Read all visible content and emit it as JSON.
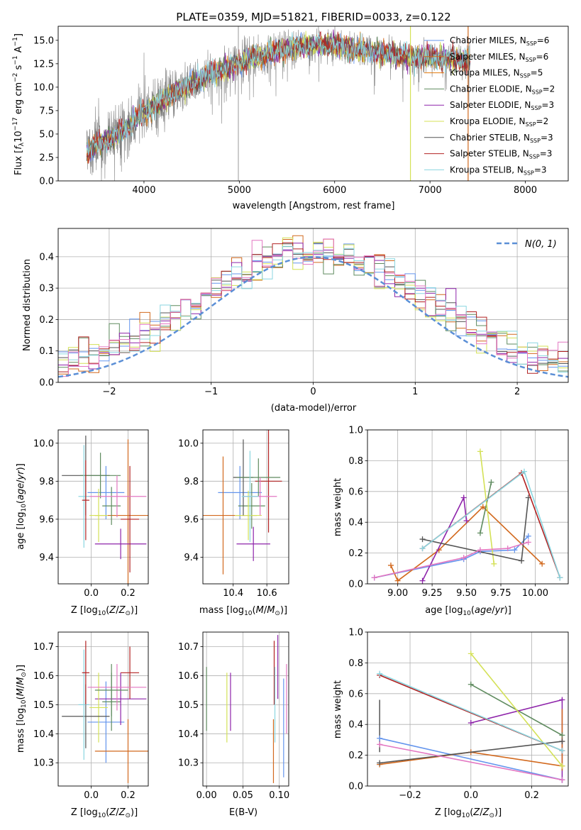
{
  "title": "PLATE=0359, MJD=51821, FIBERID=0033, z=0.122",
  "palette": [
    "#6495ed",
    "#d2691e",
    "#e27a0d",
    "#5f8b5f",
    "#8e24aa",
    "#d4e157",
    "#555555",
    "#b22222",
    "#8ad6e0",
    "#e377c2"
  ],
  "chart_data": [
    {
      "type": "line",
      "panel": "spectrum",
      "title": "PLATE=0359, MJD=51821, FIBERID=0033, z=0.122",
      "xlabel": "wavelength [Angstrom, rest frame]",
      "ylabel": "Flux [f_λ 10^-17 erg cm^-2 s^-1 A^-1]",
      "xlim": [
        3100,
        8450
      ],
      "ylim": [
        0,
        16.5
      ],
      "xticks": [
        4000,
        5000,
        6000,
        7000,
        8000
      ],
      "yticks": [
        0.0,
        2.5,
        5.0,
        7.5,
        10.0,
        12.5,
        15.0
      ],
      "data_range": [
        3400,
        7420
      ],
      "grid": false,
      "legend_position": "upper right",
      "continuum": {
        "x": [
          3400,
          3600,
          3800,
          4000,
          4200,
          4400,
          4600,
          4800,
          5000,
          5200,
          5400,
          5600,
          5800,
          6000,
          6200,
          6400,
          6600,
          6800,
          7000,
          7200,
          7420
        ],
        "y": [
          3.1,
          4.3,
          5.4,
          7.3,
          8.6,
          9.9,
          10.9,
          11.8,
          12.6,
          13.3,
          13.9,
          14.3,
          14.6,
          14.5,
          14.1,
          13.8,
          13.6,
          13.2,
          13.3,
          13.0,
          12.9
        ]
      },
      "vertical_marks": [
        {
          "x": 4990,
          "color": "#aaaaaa"
        },
        {
          "x": 6795,
          "color": "#d4e157"
        },
        {
          "x": 7400,
          "color": "#d2691e"
        }
      ],
      "series": [
        {
          "name": "Chabrier MILES, N_SSP=6"
        },
        {
          "name": "Salpeter MILES, N_SSP=6"
        },
        {
          "name": "Kroupa MILES, N_SSP=5"
        },
        {
          "name": "Chabrier ELODIE, N_SSP=2"
        },
        {
          "name": "Salpeter ELODIE, N_SSP=3"
        },
        {
          "name": "Kroupa ELODIE, N_SSP=2"
        },
        {
          "name": "Chabrier STELIB, N_SSP=3"
        },
        {
          "name": "Salpeter STELIB, N_SSP=3"
        },
        {
          "name": "Kroupa STELIB, N_SSP=3"
        }
      ]
    },
    {
      "type": "line",
      "panel": "residuals",
      "xlabel": "(data-model)/error",
      "ylabel": "Normed distribution",
      "xlim": [
        -2.5,
        2.5
      ],
      "ylim": [
        0,
        0.49
      ],
      "xticks": [
        -2,
        -1,
        0,
        1,
        2
      ],
      "yticks": [
        0.0,
        0.1,
        0.2,
        0.3,
        0.4
      ],
      "grid": true,
      "legend_position": "upper right",
      "series": [
        {
          "name": "N(0,1)",
          "style": "dashed",
          "color": "#5b8fd6"
        }
      ],
      "histograms": [
        {
          "color": "#6495ed"
        },
        {
          "color": "#d2691e"
        },
        {
          "color": "#555555"
        },
        {
          "color": "#5f8b5f"
        },
        {
          "color": "#8e24aa"
        },
        {
          "color": "#d4e157"
        },
        {
          "color": "#b22222"
        },
        {
          "color": "#8ad6e0"
        },
        {
          "color": "#e377c2"
        }
      ],
      "bin_width": 0.1
    },
    {
      "type": "scatter",
      "panel": "age-Z",
      "xlabel": "Z [log10(Z/Z⊙)]",
      "ylabel": "age [log10(age/yr)]",
      "xlim": [
        -0.18,
        0.31
      ],
      "ylim": [
        9.26,
        10.07
      ],
      "xticks": [
        0.0,
        0.2
      ],
      "yticks": [
        9.4,
        9.6,
        9.8,
        10.0
      ],
      "grid": true,
      "points": [
        {
          "x": 0.08,
          "xerr": 0.1,
          "y": 9.74,
          "yerr": 0.14,
          "color": "#6495ed"
        },
        {
          "x": 0.2,
          "xerr": 0.18,
          "y": 9.62,
          "yerr": 0.4,
          "color": "#d2691e"
        },
        {
          "x": 0.11,
          "xerr": 0.05,
          "y": 9.67,
          "yerr": 0.1,
          "color": "#5f8b5f"
        },
        {
          "x": 0.16,
          "xerr": 0.14,
          "y": 9.47,
          "yerr": 0.08,
          "color": "#8e24aa"
        },
        {
          "x": 0.04,
          "xerr": 0.05,
          "y": 9.62,
          "yerr": 0.14,
          "color": "#d4e157"
        },
        {
          "x": -0.03,
          "xerr": 0.13,
          "y": 9.83,
          "yerr": 0.21,
          "color": "#555555"
        },
        {
          "x": 0.21,
          "xerr": 0.05,
          "y": 9.6,
          "yerr": 0.28,
          "color": "#b22222"
        },
        {
          "x": 0.05,
          "xerr": 0.11,
          "y": 9.83,
          "yerr": 0.12,
          "color": "#5f8b5f"
        },
        {
          "x": 0.14,
          "xerr": 0.16,
          "y": 9.72,
          "yerr": 0.11,
          "color": "#e377c2"
        },
        {
          "x": -0.04,
          "xerr": 0.03,
          "y": 9.72,
          "yerr": 0.27,
          "color": "#8ad6e0"
        },
        {
          "x": -0.03,
          "xerr": 0.02,
          "y": 9.7,
          "yerr": 0.21,
          "color": "#b22222"
        }
      ]
    },
    {
      "type": "scatter",
      "panel": "age-mass",
      "xlabel": "mass [log10(M/M⊙)]",
      "ylabel": "",
      "xlim": [
        10.22,
        10.73
      ],
      "ylim": [
        9.26,
        10.07
      ],
      "xticks": [
        10.4,
        10.6
      ],
      "yticks": [
        9.4,
        9.6,
        9.8,
        10.0
      ],
      "grid": true,
      "points": [
        {
          "x": 10.44,
          "xerr": 0.13,
          "y": 9.74,
          "yerr": 0.14,
          "color": "#6495ed"
        },
        {
          "x": 10.34,
          "xerr": 0.2,
          "y": 9.62,
          "yerr": 0.31,
          "color": "#d2691e"
        },
        {
          "x": 10.51,
          "xerr": 0.08,
          "y": 9.67,
          "yerr": 0.12,
          "color": "#5f8b5f"
        },
        {
          "x": 10.52,
          "xerr": 0.1,
          "y": 9.47,
          "yerr": 0.09,
          "color": "#8e24aa"
        },
        {
          "x": 10.49,
          "xerr": 0.08,
          "y": 9.62,
          "yerr": 0.13,
          "color": "#d4e157"
        },
        {
          "x": 10.46,
          "xerr": 0.06,
          "y": 9.82,
          "yerr": 0.2,
          "color": "#555555"
        },
        {
          "x": 10.61,
          "xerr": 0.08,
          "y": 9.8,
          "yerr": 0.27,
          "color": "#b22222"
        },
        {
          "x": 10.55,
          "xerr": 0.13,
          "y": 9.82,
          "yerr": 0.1,
          "color": "#5f8b5f"
        },
        {
          "x": 10.56,
          "xerr": 0.1,
          "y": 9.72,
          "yerr": 0.1,
          "color": "#e377c2"
        },
        {
          "x": 10.5,
          "xerr": 0.05,
          "y": 9.72,
          "yerr": 0.24,
          "color": "#8ad6e0"
        }
      ]
    },
    {
      "type": "line",
      "panel": "mass-weight-vs-age",
      "xlabel": "age [log10(age/yr)]",
      "ylabel": "mass weight",
      "xlim": [
        8.78,
        10.24
      ],
      "ylim": [
        0,
        1
      ],
      "xticks": [
        9.0,
        9.25,
        9.5,
        9.75,
        10.0
      ],
      "yticks": [
        0.0,
        0.2,
        0.4,
        0.6,
        0.8,
        1.0
      ],
      "grid": true,
      "series": [
        {
          "color": "#6495ed",
          "x": [
            8.83,
            9.48,
            9.6,
            9.85,
            9.95
          ],
          "y": [
            0.04,
            0.16,
            0.21,
            0.22,
            0.31
          ]
        },
        {
          "color": "#d2691e",
          "x": [
            8.95,
            9.0,
            9.3,
            9.62,
            10.05
          ],
          "y": [
            0.12,
            0.02,
            0.22,
            0.5,
            0.13
          ]
        },
        {
          "color": "#5f8b5f",
          "x": [
            9.6,
            9.68
          ],
          "y": [
            0.33,
            0.66
          ]
        },
        {
          "color": "#8e24aa",
          "x": [
            9.18,
            9.48,
            9.5
          ],
          "y": [
            0.02,
            0.56,
            0.41
          ]
        },
        {
          "color": "#d4e157",
          "x": [
            9.6,
            9.7
          ],
          "y": [
            0.86,
            0.13
          ]
        },
        {
          "color": "#555555",
          "x": [
            9.18,
            9.9,
            9.95
          ],
          "y": [
            0.29,
            0.15,
            0.56
          ]
        },
        {
          "color": "#b22222",
          "x": [
            9.18,
            9.9,
            10.18
          ],
          "y": [
            0.23,
            0.72,
            0.04
          ]
        },
        {
          "color": "#8ad6e0",
          "x": [
            9.18,
            9.92,
            10.18
          ],
          "y": [
            0.23,
            0.73,
            0.04
          ]
        },
        {
          "color": "#e377c2",
          "x": [
            8.83,
            9.48,
            9.6,
            9.8,
            9.95
          ],
          "y": [
            0.04,
            0.17,
            0.22,
            0.23,
            0.27
          ]
        }
      ]
    },
    {
      "type": "scatter",
      "panel": "mass-Z",
      "xlabel": "Z [log10(Z/Z⊙)]",
      "ylabel": "mass [log10(M/M⊙)]",
      "xlim": [
        -0.18,
        0.31
      ],
      "ylim": [
        10.22,
        10.75
      ],
      "xticks": [
        0.0,
        0.2
      ],
      "yticks": [
        10.3,
        10.4,
        10.5,
        10.6,
        10.7
      ],
      "grid": true,
      "points": [
        {
          "x": 0.08,
          "xerr": 0.1,
          "y": 10.44,
          "yerr": 0.14,
          "color": "#6495ed"
        },
        {
          "x": 0.2,
          "xerr": 0.18,
          "y": 10.34,
          "yerr": 0.11,
          "color": "#d2691e"
        },
        {
          "x": 0.11,
          "xerr": 0.05,
          "y": 10.51,
          "yerr": 0.1,
          "color": "#5f8b5f"
        },
        {
          "x": 0.16,
          "xerr": 0.14,
          "y": 10.52,
          "yerr": 0.09,
          "color": "#8e24aa"
        },
        {
          "x": 0.04,
          "xerr": 0.05,
          "y": 10.49,
          "yerr": 0.12,
          "color": "#d4e157"
        },
        {
          "x": -0.03,
          "xerr": 0.13,
          "y": 10.46,
          "yerr": 0.11,
          "color": "#555555"
        },
        {
          "x": 0.21,
          "xerr": 0.05,
          "y": 10.61,
          "yerr": 0.09,
          "color": "#b22222"
        },
        {
          "x": 0.14,
          "xerr": 0.16,
          "y": 10.56,
          "yerr": 0.08,
          "color": "#e377c2"
        },
        {
          "x": -0.04,
          "xerr": 0.03,
          "y": 10.5,
          "yerr": 0.19,
          "color": "#8ad6e0"
        },
        {
          "x": -0.03,
          "xerr": 0.02,
          "y": 10.61,
          "yerr": 0.11,
          "color": "#b22222"
        },
        {
          "x": 0.11,
          "xerr": 0.09,
          "y": 10.55,
          "yerr": 0.09,
          "color": "#5f8b5f"
        }
      ]
    },
    {
      "type": "scatter",
      "panel": "mass-EBV",
      "xlabel": "E(B-V)",
      "ylabel": "",
      "xlim": [
        -0.005,
        0.113
      ],
      "ylim": [
        10.22,
        10.75
      ],
      "xticks": [
        0.0,
        0.05,
        0.1
      ],
      "yticks": [
        10.3,
        10.4,
        10.5,
        10.6,
        10.7
      ],
      "grid": true,
      "points": [
        {
          "x": 0.0,
          "y": 10.52,
          "yerr": 0.11,
          "color": "#5f8b5f"
        },
        {
          "x": 0.028,
          "y": 10.49,
          "yerr": 0.12,
          "color": "#d4e157"
        },
        {
          "x": 0.033,
          "y": 10.51,
          "yerr": 0.1,
          "color": "#8e24aa"
        },
        {
          "x": 0.092,
          "y": 10.34,
          "yerr": 0.11,
          "color": "#d2691e"
        },
        {
          "x": 0.093,
          "y": 10.61,
          "yerr": 0.11,
          "color": "#b22222"
        },
        {
          "x": 0.094,
          "y": 10.5,
          "yerr": 0.13,
          "color": "#8ad6e0"
        },
        {
          "x": 0.098,
          "y": 10.63,
          "yerr": 0.11,
          "color": "#8e24aa"
        },
        {
          "x": 0.106,
          "y": 10.42,
          "yerr": 0.17,
          "color": "#6495ed"
        },
        {
          "x": 0.11,
          "y": 10.52,
          "yerr": 0.12,
          "color": "#e377c2"
        }
      ]
    },
    {
      "type": "line",
      "panel": "mass-weight-vs-Z",
      "xlabel": "Z [log10(Z/Z⊙)]",
      "ylabel": "mass weight",
      "xlim": [
        -0.34,
        0.32
      ],
      "ylim": [
        0,
        1
      ],
      "xticks": [
        -0.2,
        0.0,
        0.2
      ],
      "yticks": [
        0.0,
        0.2,
        0.4,
        0.6,
        0.8,
        1.0
      ],
      "grid": true,
      "series": [
        {
          "color": "#6495ed",
          "x": [
            -0.3,
            0.3
          ],
          "y": [
            0.31,
            0.04
          ]
        },
        {
          "color": "#d2691e",
          "x": [
            -0.3,
            0.0,
            0.3
          ],
          "y": [
            0.14,
            0.22,
            0.13
          ]
        },
        {
          "color": "#5f8b5f",
          "x": [
            0.0,
            0.3
          ],
          "y": [
            0.66,
            0.33
          ]
        },
        {
          "color": "#8e24aa",
          "x": [
            0.0,
            0.3
          ],
          "y": [
            0.41,
            0.56
          ]
        },
        {
          "color": "#d4e157",
          "x": [
            0.0,
            0.3
          ],
          "y": [
            0.86,
            0.13
          ]
        },
        {
          "color": "#555555",
          "x": [
            -0.3,
            0.3
          ],
          "y": [
            0.15,
            0.29
          ]
        },
        {
          "color": "#b22222",
          "x": [
            -0.3,
            0.3
          ],
          "y": [
            0.72,
            0.23
          ]
        },
        {
          "color": "#8ad6e0",
          "x": [
            -0.3,
            0.3
          ],
          "y": [
            0.73,
            0.23
          ]
        },
        {
          "color": "#e377c2",
          "x": [
            -0.3,
            0.3
          ],
          "y": [
            0.27,
            0.04
          ]
        }
      ],
      "vertical_markers": [
        {
          "x": -0.3,
          "y_from": 0.22,
          "y_to": 0.56,
          "color": "#555555"
        },
        {
          "x": 0.3,
          "y_from": 0.02,
          "y_to": 0.57,
          "color": "#8e24aa"
        },
        {
          "x": 0.3,
          "y_from": 0.1,
          "y_to": 0.5,
          "color": "#d2691e"
        }
      ]
    }
  ]
}
